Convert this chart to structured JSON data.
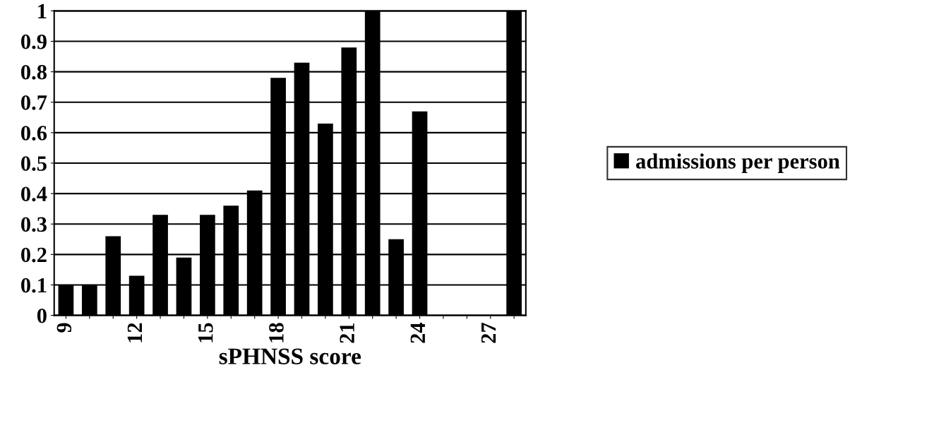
{
  "chart_data": {
    "type": "bar",
    "xlabel": "sPHNSS score",
    "categories": [
      "9",
      null,
      null,
      "12",
      null,
      null,
      "15",
      null,
      null,
      "18",
      null,
      null,
      "21",
      null,
      null,
      "24",
      null,
      null,
      "27",
      null
    ],
    "series": [
      {
        "name": "admissions per person",
        "color": "#000000",
        "values": [
          0.1,
          0.1,
          0.26,
          0.13,
          0.33,
          0.19,
          0.33,
          0.36,
          0.41,
          0.78,
          0.83,
          0.63,
          0.88,
          1.0,
          0.25,
          0.67,
          0,
          0,
          0,
          1.0
        ]
      }
    ],
    "ylim": [
      0,
      1
    ],
    "yticks": [
      0,
      0.1,
      0.2,
      0.3,
      0.4,
      0.5,
      0.6,
      0.7,
      0.8,
      0.9,
      1
    ],
    "grid": "y",
    "legend": "right"
  }
}
